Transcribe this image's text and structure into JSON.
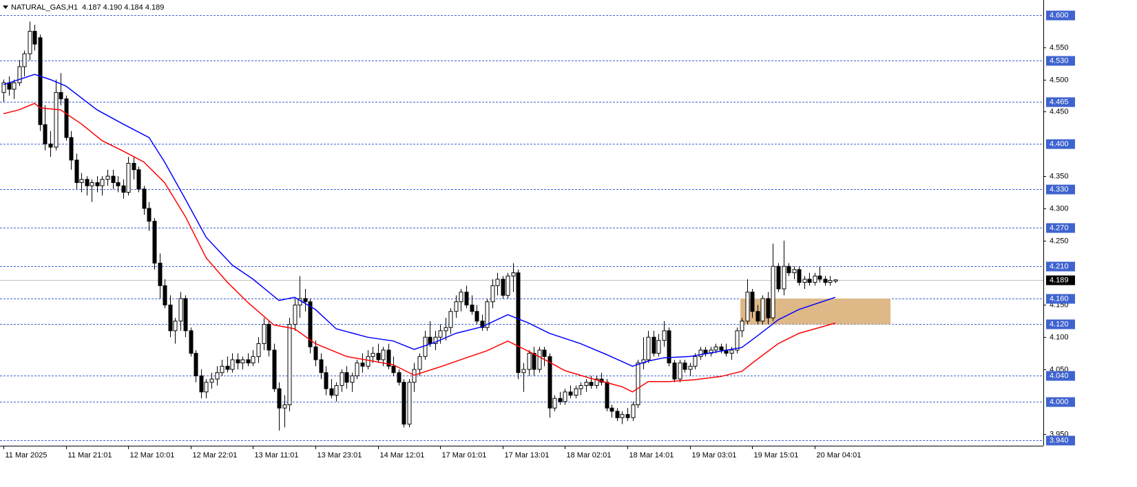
{
  "chart_data": {
    "type": "candlestick",
    "title": "NATURAL_GAS,H1  4.187 4.190 4.184 4.189",
    "categories": [
      "11 Mar 2025",
      null,
      null,
      null,
      null,
      null,
      null,
      null,
      null,
      null,
      null,
      null,
      "11 Mar 21:01",
      null,
      null,
      null,
      null,
      null,
      null,
      null,
      null,
      null,
      null,
      null,
      "12 Mar 10:01",
      null,
      null,
      null,
      null,
      null,
      null,
      null,
      null,
      null,
      null,
      null,
      "12 Mar 22:01",
      null,
      null,
      null,
      null,
      null,
      null,
      null,
      null,
      null,
      null,
      null,
      "13 Mar 11:01",
      null,
      null,
      null,
      null,
      null,
      null,
      null,
      null,
      null,
      null,
      null,
      "13 Mar 23:01",
      null,
      null,
      null,
      null,
      null,
      null,
      null,
      null,
      null,
      null,
      null,
      "14 Mar 12:01",
      null,
      null,
      null,
      null,
      null,
      null,
      null,
      null,
      null,
      null,
      null,
      "17 Mar 01:01",
      null,
      null,
      null,
      null,
      null,
      null,
      null,
      null,
      null,
      null,
      null,
      "17 Mar 13:01",
      null,
      null,
      null,
      null,
      null,
      null,
      null,
      null,
      null,
      null,
      null,
      "18 Mar 02:01",
      null,
      null,
      null,
      null,
      null,
      null,
      null,
      null,
      null,
      null,
      null,
      "18 Mar 14:01",
      null,
      null,
      null,
      null,
      null,
      null,
      null,
      null,
      null,
      null,
      null,
      "19 Mar 03:01",
      null,
      null,
      null,
      null,
      null,
      null,
      null,
      null,
      null,
      null,
      null,
      "19 Mar 15:01",
      null,
      null,
      null,
      null,
      null,
      null,
      null,
      null,
      null,
      null,
      null,
      "20 Mar 04:01",
      null,
      null,
      null,
      null
    ],
    "ohlc": [
      [
        4.48,
        4.5,
        4.465,
        4.495
      ],
      [
        4.495,
        4.505,
        4.475,
        4.485
      ],
      [
        4.485,
        4.5,
        4.47,
        4.495
      ],
      [
        4.495,
        4.53,
        4.49,
        4.52
      ],
      [
        4.52,
        4.545,
        4.505,
        4.54
      ],
      [
        4.54,
        4.59,
        4.53,
        4.575
      ],
      [
        4.575,
        4.585,
        4.545,
        4.555
      ],
      [
        4.565,
        4.57,
        4.42,
        4.43
      ],
      [
        4.43,
        4.46,
        4.39,
        4.4
      ],
      [
        4.4,
        4.42,
        4.38,
        4.395
      ],
      [
        4.395,
        4.5,
        4.39,
        4.48
      ],
      [
        4.48,
        4.51,
        4.46,
        4.47
      ],
      [
        4.47,
        4.475,
        4.405,
        4.41
      ],
      [
        4.41,
        4.42,
        4.36,
        4.375
      ],
      [
        4.375,
        4.385,
        4.33,
        4.34
      ],
      [
        4.34,
        4.355,
        4.325,
        4.345
      ],
      [
        4.345,
        4.35,
        4.32,
        4.335
      ],
      [
        4.335,
        4.345,
        4.31,
        4.34
      ],
      [
        4.34,
        4.35,
        4.325,
        4.335
      ],
      [
        4.335,
        4.35,
        4.32,
        4.345
      ],
      [
        4.345,
        4.36,
        4.335,
        4.35
      ],
      [
        4.35,
        4.36,
        4.33,
        4.34
      ],
      [
        4.34,
        4.35,
        4.325,
        4.335
      ],
      [
        4.335,
        4.345,
        4.315,
        4.325
      ],
      [
        4.325,
        4.38,
        4.32,
        4.37
      ],
      [
        4.37,
        4.38,
        4.345,
        4.36
      ],
      [
        4.36,
        4.365,
        4.325,
        4.33
      ],
      [
        4.33,
        4.335,
        4.29,
        4.3
      ],
      [
        4.3,
        4.31,
        4.265,
        4.28
      ],
      [
        4.28,
        4.285,
        4.205,
        4.215
      ],
      [
        4.215,
        4.23,
        4.16,
        4.18
      ],
      [
        4.18,
        4.19,
        4.145,
        4.15
      ],
      [
        4.15,
        4.165,
        4.1,
        4.11
      ],
      [
        4.11,
        4.13,
        4.09,
        4.125
      ],
      [
        4.125,
        4.17,
        4.11,
        4.16
      ],
      [
        4.16,
        4.165,
        4.1,
        4.11
      ],
      [
        4.11,
        4.115,
        4.07,
        4.075
      ],
      [
        4.075,
        4.08,
        4.03,
        4.04
      ],
      [
        4.04,
        4.05,
        4.005,
        4.015
      ],
      [
        4.015,
        4.035,
        4.005,
        4.03
      ],
      [
        4.03,
        4.045,
        4.02,
        4.035
      ],
      [
        4.035,
        4.055,
        4.025,
        4.045
      ],
      [
        4.045,
        4.065,
        4.04,
        4.055
      ],
      [
        4.055,
        4.07,
        4.045,
        4.05
      ],
      [
        4.05,
        4.075,
        4.045,
        4.065
      ],
      [
        4.065,
        4.075,
        4.05,
        4.06
      ],
      [
        4.06,
        4.07,
        4.05,
        4.065
      ],
      [
        4.065,
        4.075,
        4.055,
        4.06
      ],
      [
        4.06,
        4.08,
        4.055,
        4.07
      ],
      [
        4.07,
        4.1,
        4.06,
        4.09
      ],
      [
        4.09,
        4.13,
        4.08,
        4.12
      ],
      [
        4.12,
        4.125,
        4.07,
        4.08
      ],
      [
        4.08,
        4.09,
        4.015,
        4.02
      ],
      [
        4.02,
        4.03,
        3.955,
        3.99
      ],
      [
        3.99,
        4.01,
        3.96,
        3.995
      ],
      [
        3.995,
        4.13,
        3.985,
        4.12
      ],
      [
        4.12,
        4.16,
        4.11,
        4.15
      ],
      [
        4.15,
        4.195,
        4.13,
        4.16
      ],
      [
        4.16,
        4.175,
        4.14,
        4.155
      ],
      [
        4.155,
        4.16,
        4.075,
        4.085
      ],
      [
        4.085,
        4.095,
        4.055,
        4.065
      ],
      [
        4.065,
        4.075,
        4.035,
        4.045
      ],
      [
        4.045,
        4.055,
        4.01,
        4.02
      ],
      [
        4.02,
        4.035,
        4.005,
        4.01
      ],
      [
        4.01,
        4.03,
        4.0,
        4.025
      ],
      [
        4.025,
        4.05,
        4.015,
        4.045
      ],
      [
        4.045,
        4.055,
        4.02,
        4.03
      ],
      [
        4.03,
        4.045,
        4.015,
        4.04
      ],
      [
        4.04,
        4.065,
        4.035,
        4.06
      ],
      [
        4.06,
        4.075,
        4.045,
        4.055
      ],
      [
        4.055,
        4.08,
        4.05,
        4.07
      ],
      [
        4.07,
        4.085,
        4.06,
        4.075
      ],
      [
        4.075,
        4.09,
        4.06,
        4.065
      ],
      [
        4.065,
        4.085,
        4.055,
        4.08
      ],
      [
        4.08,
        4.09,
        4.05,
        4.055
      ],
      [
        4.055,
        4.07,
        4.04,
        4.045
      ],
      [
        4.045,
        4.05,
        4.025,
        4.03
      ],
      [
        4.03,
        4.035,
        3.96,
        3.965
      ],
      [
        3.965,
        4.035,
        3.96,
        4.03
      ],
      [
        4.03,
        4.06,
        4.015,
        4.05
      ],
      [
        4.05,
        4.075,
        4.04,
        4.07
      ],
      [
        4.07,
        4.11,
        4.065,
        4.1
      ],
      [
        4.1,
        4.125,
        4.085,
        4.09
      ],
      [
        4.09,
        4.11,
        4.08,
        4.1
      ],
      [
        4.1,
        4.12,
        4.09,
        4.11
      ],
      [
        4.11,
        4.13,
        4.095,
        4.115
      ],
      [
        4.115,
        4.145,
        4.105,
        4.14
      ],
      [
        4.14,
        4.165,
        4.13,
        4.155
      ],
      [
        4.155,
        4.175,
        4.14,
        4.17
      ],
      [
        4.17,
        4.18,
        4.145,
        4.15
      ],
      [
        4.15,
        4.165,
        4.135,
        4.14
      ],
      [
        4.14,
        4.15,
        4.12,
        4.125
      ],
      [
        4.125,
        4.135,
        4.11,
        4.115
      ],
      [
        4.115,
        4.16,
        4.11,
        4.155
      ],
      [
        4.155,
        4.19,
        4.145,
        4.18
      ],
      [
        4.18,
        4.2,
        4.165,
        4.19
      ],
      [
        4.19,
        4.195,
        4.16,
        4.165
      ],
      [
        4.165,
        4.2,
        4.16,
        4.195
      ],
      [
        4.195,
        4.215,
        4.17,
        4.2
      ],
      [
        4.2,
        4.205,
        4.035,
        4.045
      ],
      [
        4.045,
        4.06,
        4.015,
        4.05
      ],
      [
        4.05,
        4.08,
        4.04,
        4.075
      ],
      [
        4.075,
        4.085,
        4.04,
        4.05
      ],
      [
        4.05,
        4.085,
        4.045,
        4.08
      ],
      [
        4.08,
        4.085,
        4.055,
        4.07
      ],
      [
        4.07,
        4.075,
        3.975,
        3.99
      ],
      [
        3.99,
        4.01,
        3.985,
        4.005
      ],
      [
        4.005,
        4.015,
        3.995,
        4.0
      ],
      [
        4.0,
        4.02,
        3.995,
        4.015
      ],
      [
        4.015,
        4.025,
        4.005,
        4.01
      ],
      [
        4.01,
        4.025,
        4.005,
        4.02
      ],
      [
        4.02,
        4.03,
        4.01,
        4.025
      ],
      [
        4.025,
        4.035,
        4.015,
        4.03
      ],
      [
        4.03,
        4.04,
        4.02,
        4.025
      ],
      [
        4.025,
        4.04,
        4.02,
        4.035
      ],
      [
        4.035,
        4.045,
        4.025,
        4.03
      ],
      [
        4.03,
        4.035,
        3.985,
        3.99
      ],
      [
        3.99,
        3.995,
        3.975,
        3.985
      ],
      [
        3.985,
        3.99,
        3.97,
        3.975
      ],
      [
        3.975,
        3.985,
        3.965,
        3.98
      ],
      [
        3.98,
        3.99,
        3.97,
        3.975
      ],
      [
        3.975,
        4.0,
        3.97,
        3.995
      ],
      [
        3.995,
        4.065,
        3.99,
        4.06
      ],
      [
        4.06,
        4.1,
        4.05,
        4.065
      ],
      [
        4.065,
        4.11,
        4.06,
        4.1
      ],
      [
        4.1,
        4.11,
        4.07,
        4.075
      ],
      [
        4.075,
        4.105,
        4.07,
        4.095
      ],
      [
        4.095,
        4.125,
        4.085,
        4.11
      ],
      [
        4.11,
        4.115,
        4.055,
        4.06
      ],
      [
        4.06,
        4.065,
        4.03,
        4.035
      ],
      [
        4.035,
        4.065,
        4.03,
        4.06
      ],
      [
        4.06,
        4.065,
        4.045,
        4.05
      ],
      [
        4.05,
        4.06,
        4.04,
        4.055
      ],
      [
        4.055,
        4.075,
        4.05,
        4.07
      ],
      [
        4.07,
        4.085,
        4.065,
        4.08
      ],
      [
        4.08,
        4.085,
        4.07,
        4.075
      ],
      [
        4.075,
        4.085,
        4.07,
        4.08
      ],
      [
        4.08,
        4.09,
        4.075,
        4.085
      ],
      [
        4.085,
        4.09,
        4.075,
        4.08
      ],
      [
        4.08,
        4.09,
        4.07,
        4.075
      ],
      [
        4.075,
        4.085,
        4.065,
        4.08
      ],
      [
        4.08,
        4.115,
        4.075,
        4.11
      ],
      [
        4.11,
        4.13,
        4.1,
        4.125
      ],
      [
        4.125,
        4.19,
        4.12,
        4.17
      ],
      [
        4.17,
        4.175,
        4.13,
        4.14
      ],
      [
        4.14,
        4.15,
        4.12,
        4.125
      ],
      [
        4.125,
        4.165,
        4.12,
        4.16
      ],
      [
        4.16,
        4.17,
        4.12,
        4.13
      ],
      [
        4.13,
        4.245,
        4.125,
        4.21
      ],
      [
        4.21,
        4.215,
        4.17,
        4.175
      ],
      [
        4.175,
        4.25,
        4.165,
        4.21
      ],
      [
        4.21,
        4.215,
        4.195,
        4.2
      ],
      [
        4.2,
        4.21,
        4.19,
        4.205
      ],
      [
        4.205,
        4.21,
        4.18,
        4.185
      ],
      [
        4.185,
        4.195,
        4.175,
        4.19
      ],
      [
        4.19,
        4.2,
        4.18,
        4.185
      ],
      [
        4.185,
        4.2,
        4.18,
        4.195
      ],
      [
        4.195,
        4.21,
        4.185,
        4.19
      ],
      [
        4.19,
        4.195,
        4.18,
        4.185
      ],
      [
        4.185,
        4.195,
        4.18,
        4.188
      ],
      [
        4.187,
        4.19,
        4.184,
        4.189
      ]
    ],
    "bull_color": "#ffffff",
    "bear_color": "#000000",
    "series": [
      {
        "type": "line",
        "color": "#0000ff",
        "x": [
          0,
          6,
          9,
          12,
          18,
          23,
          28,
          31,
          35,
          39,
          44,
          48,
          53,
          56,
          60,
          64,
          70,
          75,
          79,
          83,
          87,
          92,
          97,
          101,
          105,
          111,
          116,
          121,
          124,
          127,
          132,
          137,
          142,
          145,
          149,
          153,
          160
        ],
        "values": [
          4.492,
          4.508,
          4.5,
          4.49,
          4.453,
          4.431,
          4.41,
          4.372,
          4.314,
          4.255,
          4.212,
          4.19,
          4.157,
          4.162,
          4.143,
          4.113,
          4.1,
          4.094,
          4.081,
          4.092,
          4.106,
          4.116,
          4.135,
          4.122,
          4.106,
          4.09,
          4.073,
          4.055,
          4.063,
          4.068,
          4.07,
          4.077,
          4.084,
          4.102,
          4.127,
          4.143,
          4.162
        ]
      },
      {
        "type": "line",
        "color": "#ff0000",
        "x": [
          0,
          3,
          6,
          7,
          11,
          15,
          19,
          23,
          27,
          31,
          35,
          39,
          43,
          47,
          52,
          56,
          60,
          66,
          71,
          75,
          79,
          84,
          89,
          93,
          97,
          103,
          108,
          113,
          119,
          121,
          124,
          128,
          133,
          138,
          142,
          145,
          149,
          153,
          160
        ],
        "values": [
          4.447,
          4.453,
          4.463,
          4.456,
          4.453,
          4.431,
          4.405,
          4.389,
          4.372,
          4.34,
          4.287,
          4.223,
          4.186,
          4.154,
          4.119,
          4.113,
          4.09,
          4.07,
          4.063,
          4.057,
          4.041,
          4.054,
          4.068,
          4.079,
          4.094,
          4.07,
          4.048,
          4.036,
          4.023,
          4.015,
          4.031,
          4.031,
          4.034,
          4.039,
          4.047,
          4.066,
          4.09,
          4.106,
          4.122
        ]
      }
    ],
    "ylim": [
      3.9315,
      4.6235
    ],
    "yticks": [
      {
        "value": 4.55,
        "label": "4.550"
      },
      {
        "value": 4.5,
        "label": "4.500"
      },
      {
        "value": 4.45,
        "label": "4.450"
      },
      {
        "value": 4.35,
        "label": "4.350"
      },
      {
        "value": 4.3,
        "label": "4.300"
      },
      {
        "value": 4.25,
        "label": "4.250"
      },
      {
        "value": 4.15,
        "label": "4.150"
      },
      {
        "value": 4.1,
        "label": "4.100"
      },
      {
        "value": 4.05,
        "label": "4.050"
      },
      {
        "value": 3.95,
        "label": "3.950"
      }
    ],
    "levels": [
      {
        "value": 4.6,
        "label": "4.600"
      },
      {
        "value": 4.53,
        "label": "4.530"
      },
      {
        "value": 4.465,
        "label": "4.465"
      },
      {
        "value": 4.4,
        "label": "4.400"
      },
      {
        "value": 4.33,
        "label": "4.330"
      },
      {
        "value": 4.27,
        "label": "4.270"
      },
      {
        "value": 4.21,
        "label": "4.210"
      },
      {
        "value": 4.16,
        "label": "4.160"
      },
      {
        "value": 4.12,
        "label": "4.120"
      },
      {
        "value": 4.04,
        "label": "4.040"
      },
      {
        "value": 4.0,
        "label": "4.000"
      },
      {
        "value": 3.94,
        "label": "3.940"
      }
    ],
    "level_color": "#3f63cf",
    "last_price": {
      "value": 4.189,
      "label": "4.189"
    },
    "zone": {
      "low": 4.12,
      "high": 4.16,
      "color": "#deb887"
    }
  }
}
